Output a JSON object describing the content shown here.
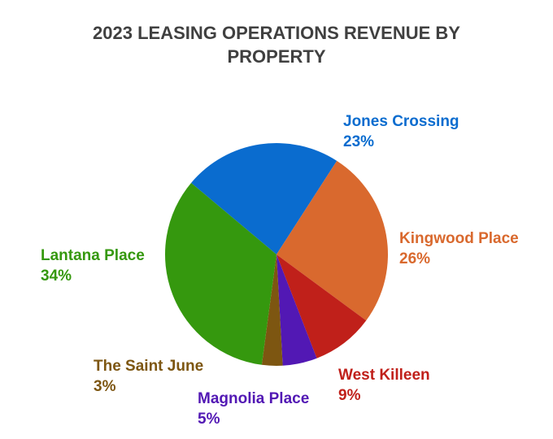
{
  "chart_data": {
    "type": "pie",
    "title_lines": [
      "2023 LEASING OPERATIONS REVENUE BY",
      "PROPERTY"
    ],
    "slices": [
      {
        "label": "Jones Crossing",
        "value": 23,
        "value_label": "23%",
        "color": "#0a6ccf"
      },
      {
        "label": "Kingwood Place",
        "value": 26,
        "value_label": "26%",
        "color": "#d9692e"
      },
      {
        "label": "West Killeen",
        "value": 9,
        "value_label": "9%",
        "color": "#c0201a"
      },
      {
        "label": "Magnolia Place",
        "value": 5,
        "value_label": "5%",
        "color": "#5218b4"
      },
      {
        "label": "The Saint June",
        "value": 3,
        "value_label": "3%",
        "color": "#7d5611"
      },
      {
        "label": "Lantana Place",
        "value": 34,
        "value_label": "34%",
        "color": "#35980e"
      }
    ],
    "legend": "none"
  }
}
